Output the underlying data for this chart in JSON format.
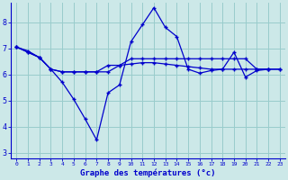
{
  "title": "Graphe des températures (°c)",
  "background_color": "#cce8e8",
  "grid_color": "#99cccc",
  "line_color": "#0000cc",
  "xlim": [
    -0.5,
    23.5
  ],
  "ylim": [
    2.8,
    8.75
  ],
  "yticks": [
    3,
    4,
    5,
    6,
    7,
    8
  ],
  "xticks": [
    0,
    1,
    2,
    3,
    4,
    5,
    6,
    7,
    8,
    9,
    10,
    11,
    12,
    13,
    14,
    15,
    16,
    17,
    18,
    19,
    20,
    21,
    22,
    23
  ],
  "xlabel": "Graphe des températures (°c)",
  "line1_x": [
    0,
    1,
    2,
    3,
    4,
    5,
    6,
    7,
    8,
    9,
    10,
    11,
    12,
    13,
    14,
    15,
    16,
    17,
    18,
    19,
    20,
    21,
    22,
    23
  ],
  "line1_y": [
    7.05,
    6.9,
    6.65,
    6.2,
    5.7,
    5.05,
    4.3,
    3.5,
    5.3,
    5.6,
    7.25,
    7.9,
    8.55,
    7.8,
    7.45,
    6.2,
    6.05,
    6.15,
    6.2,
    6.85,
    5.9,
    6.15,
    6.2,
    null
  ],
  "line2_x": [
    0,
    1,
    2,
    3,
    4,
    5,
    6,
    7,
    8,
    9,
    10,
    11,
    12,
    13,
    14,
    15,
    16,
    17,
    18,
    19,
    20,
    21,
    22,
    23
  ],
  "line2_y": [
    7.05,
    6.85,
    6.65,
    6.2,
    6.1,
    6.1,
    6.1,
    6.1,
    6.1,
    6.35,
    6.6,
    6.6,
    6.6,
    6.6,
    6.6,
    6.6,
    6.6,
    6.6,
    6.6,
    6.6,
    6.6,
    6.2,
    6.2,
    6.2
  ],
  "line3_x": [
    0,
    1,
    2,
    3,
    4,
    5,
    6,
    7,
    8,
    9,
    10,
    11,
    12,
    13,
    14,
    15,
    16,
    17,
    18,
    19,
    20,
    21,
    22,
    23
  ],
  "line3_y": [
    7.05,
    6.85,
    6.65,
    6.2,
    6.1,
    6.1,
    6.1,
    6.1,
    6.35,
    6.35,
    6.4,
    6.45,
    6.45,
    6.4,
    6.35,
    6.3,
    6.25,
    6.2,
    6.2,
    6.2,
    6.2,
    6.2,
    6.2,
    6.2
  ]
}
